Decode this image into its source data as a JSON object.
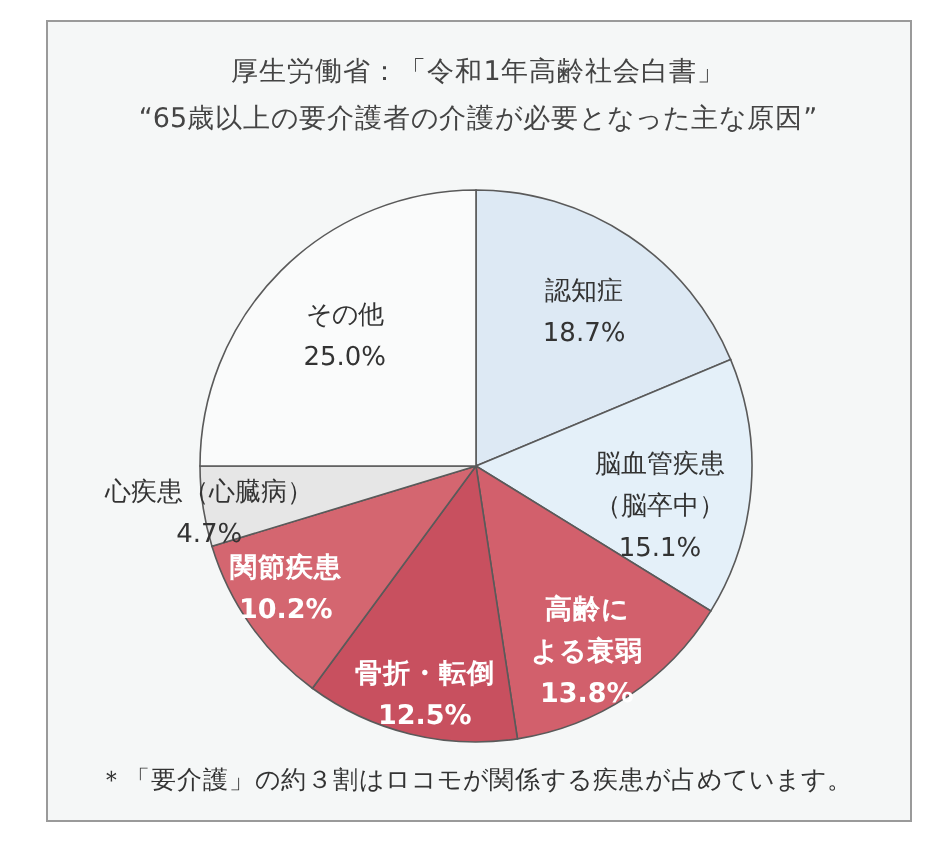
{
  "chart_data": {
    "type": "pie",
    "title": "厚生労働省：「令和1年高齢社会白書」",
    "subtitle": "“65歳以上の要介護者の介護が必要となった主な原因”",
    "categories": [
      "認知症",
      "脳血管疾患（脳卒中）",
      "高齢による衰弱",
      "骨折・転倒",
      "関節疾患",
      "心疾患（心臓病）",
      "その他"
    ],
    "values": [
      18.7,
      15.1,
      13.8,
      12.5,
      10.2,
      4.7,
      25.0
    ],
    "colors": [
      "#dde9f4",
      "#e4f0f9",
      "#d2606c",
      "#c8505f",
      "#d46670",
      "#e6e6e6",
      "#fafbfb"
    ],
    "value_labels": [
      "18.7%",
      "15.1%",
      "13.8%",
      "12.5%",
      "10.2%",
      "4.7%",
      "25.0%"
    ],
    "annotations": [
      "＊「要介護」の約３割はロコモが関係する疾患が占めています。"
    ]
  }
}
